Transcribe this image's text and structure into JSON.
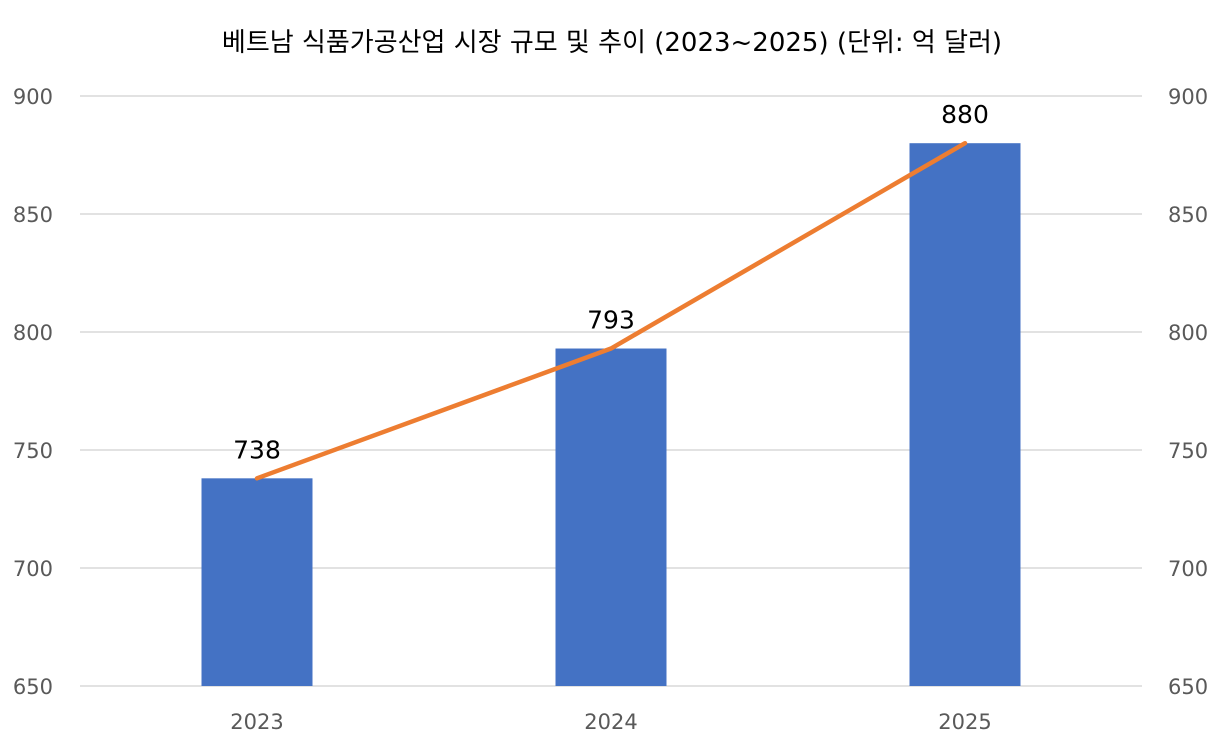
{
  "chart_data": {
    "type": "bar",
    "title": "베트남 식품가공산업 시장 규모 및 추이 (2023~2025)     (단위: 억 달러)",
    "categories": [
      "2023",
      "2024",
      "2025"
    ],
    "series": [
      {
        "type": "bar",
        "values": [
          738,
          793,
          880
        ],
        "color": "#4472c4"
      },
      {
        "type": "line",
        "values": [
          738,
          793,
          880
        ],
        "color": "#ed7d31"
      }
    ],
    "data_labels": [
      "738",
      "793",
      "880"
    ],
    "ylim": [
      650,
      900
    ],
    "yticks": [
      650,
      700,
      750,
      800,
      850,
      900
    ],
    "ytick_labels": [
      "650",
      "700",
      "750",
      "800",
      "850",
      "900"
    ],
    "secondary_ytick_labels": [
      "650",
      "700",
      "750",
      "800",
      "850",
      "900"
    ],
    "grid": true,
    "legend": false
  }
}
